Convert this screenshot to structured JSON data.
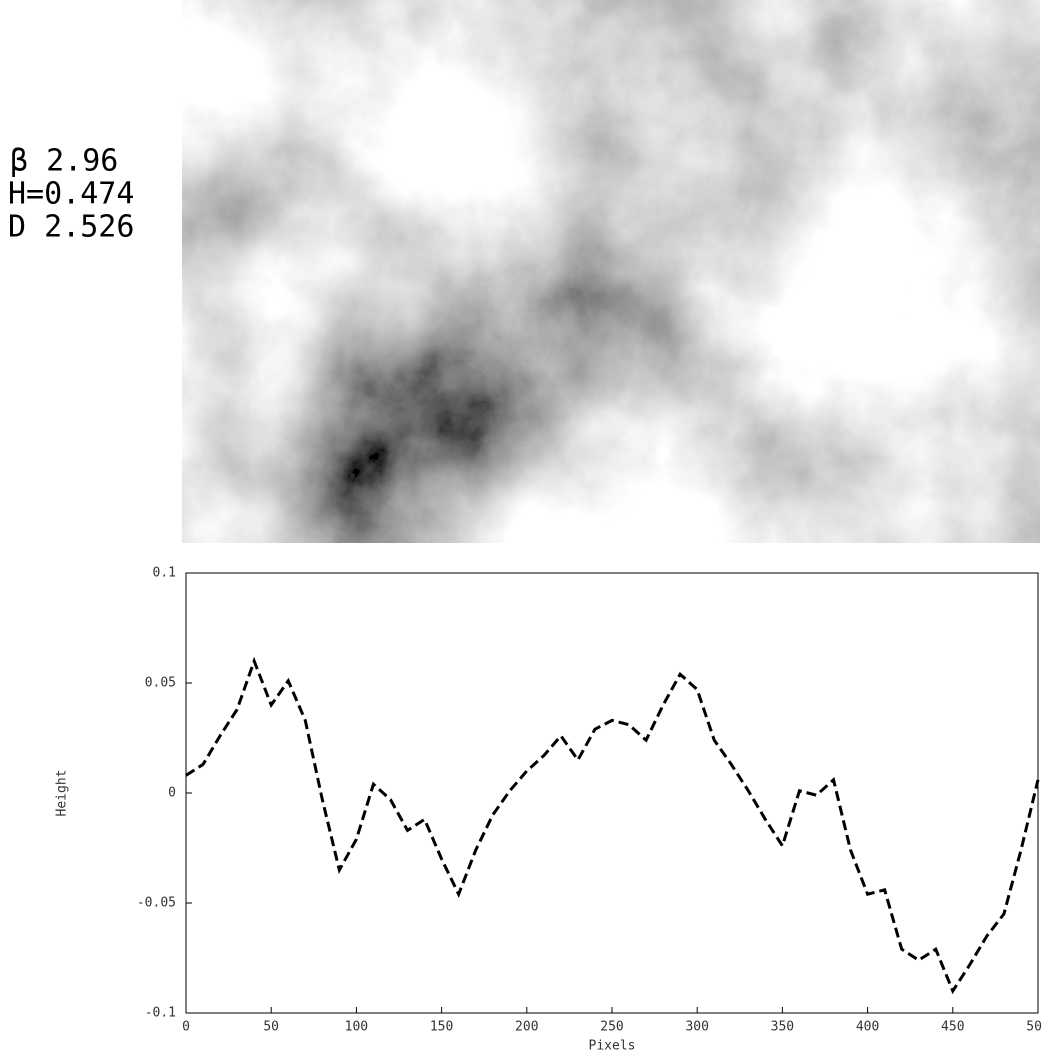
{
  "header": {
    "beta": "β  2.96",
    "hurst": "H=0.474",
    "dimension": "D  2.526"
  },
  "chart_data": {
    "type": "line",
    "x_label": "Pixels",
    "y_label": "Height",
    "x": [
      0,
      10,
      20,
      30,
      40,
      50,
      60,
      70,
      80,
      90,
      100,
      110,
      120,
      130,
      140,
      150,
      160,
      170,
      180,
      190,
      200,
      210,
      220,
      230,
      240,
      250,
      260,
      270,
      280,
      290,
      300,
      310,
      320,
      330,
      340,
      350,
      360,
      370,
      380,
      390,
      400,
      410,
      420,
      430,
      440,
      450,
      460,
      470,
      480,
      490,
      500
    ],
    "series": [
      {
        "name": "Height",
        "color": "#000000",
        "values": [
          0.008,
          0.013,
          0.026,
          0.038,
          0.06,
          0.04,
          0.051,
          0.033,
          -0.003,
          -0.035,
          -0.021,
          0.004,
          -0.003,
          -0.017,
          -0.012,
          -0.03,
          -0.046,
          -0.026,
          -0.01,
          0.001,
          0.01,
          0.017,
          0.026,
          0.015,
          0.029,
          0.033,
          0.031,
          0.024,
          0.04,
          0.054,
          0.047,
          0.024,
          0.013,
          0.001,
          -0.012,
          -0.024,
          0.001,
          -0.001,
          0.006,
          -0.026,
          -0.046,
          -0.044,
          -0.071,
          -0.076,
          -0.071,
          -0.09,
          -0.078,
          -0.065,
          -0.055,
          -0.026,
          0.006
        ]
      }
    ],
    "xlim": [
      0,
      500
    ],
    "xticks": [
      0,
      50,
      100,
      150,
      200,
      250,
      300,
      350,
      400,
      450,
      500
    ],
    "ylim": [
      -0.1,
      0.1
    ],
    "yticks": [
      -0.1,
      -0.05,
      0,
      0.05,
      0.1
    ]
  }
}
